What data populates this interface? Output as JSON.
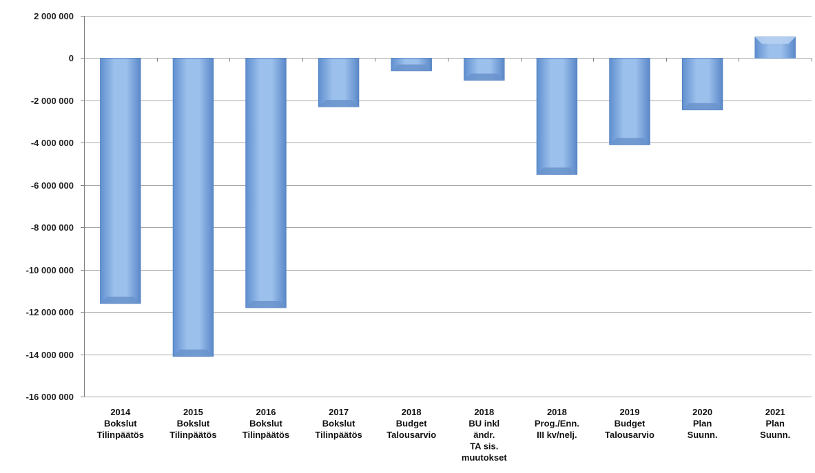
{
  "chart_data": {
    "type": "bar",
    "title": "",
    "xlabel": "",
    "ylabel": "",
    "ylim": [
      -16000000,
      2000000
    ],
    "yticks": [
      2000000,
      0,
      -2000000,
      -4000000,
      -6000000,
      -8000000,
      -10000000,
      -12000000,
      -14000000,
      -16000000
    ],
    "ytick_labels": [
      "2 000 000",
      "0",
      "-2 000 000",
      "-4 000 000",
      "-6 000 000",
      "-8 000 000",
      "-10 000 000",
      "-12 000 000",
      "-14 000 000",
      "-16 000 000"
    ],
    "grid": true,
    "legend": "none",
    "bar_color": "#8db4e2",
    "categories": [
      [
        "2014",
        "Bokslut",
        "Tilinpäätös"
      ],
      [
        "2015",
        "Bokslut",
        "Tilinpäätös"
      ],
      [
        "2016",
        "Bokslut",
        "Tilinpäätös"
      ],
      [
        "2017",
        "Bokslut",
        "Tilinpäätös"
      ],
      [
        "2018",
        "Budget",
        "Talousarvio"
      ],
      [
        "2018",
        "BU inkl",
        "ändr.",
        "TA sis.",
        "muutokset"
      ],
      [
        "2018",
        "Prog./Enn.",
        "III kv/nelj."
      ],
      [
        "2019",
        "Budget",
        "Talousarvio"
      ],
      [
        "2020",
        "Plan",
        "Suunn."
      ],
      [
        "2021",
        "Plan",
        "Suunn."
      ]
    ],
    "values": [
      -11600000,
      -14100000,
      -11800000,
      -2300000,
      -600000,
      -1050000,
      -5500000,
      -4100000,
      -2450000,
      1000000
    ]
  }
}
